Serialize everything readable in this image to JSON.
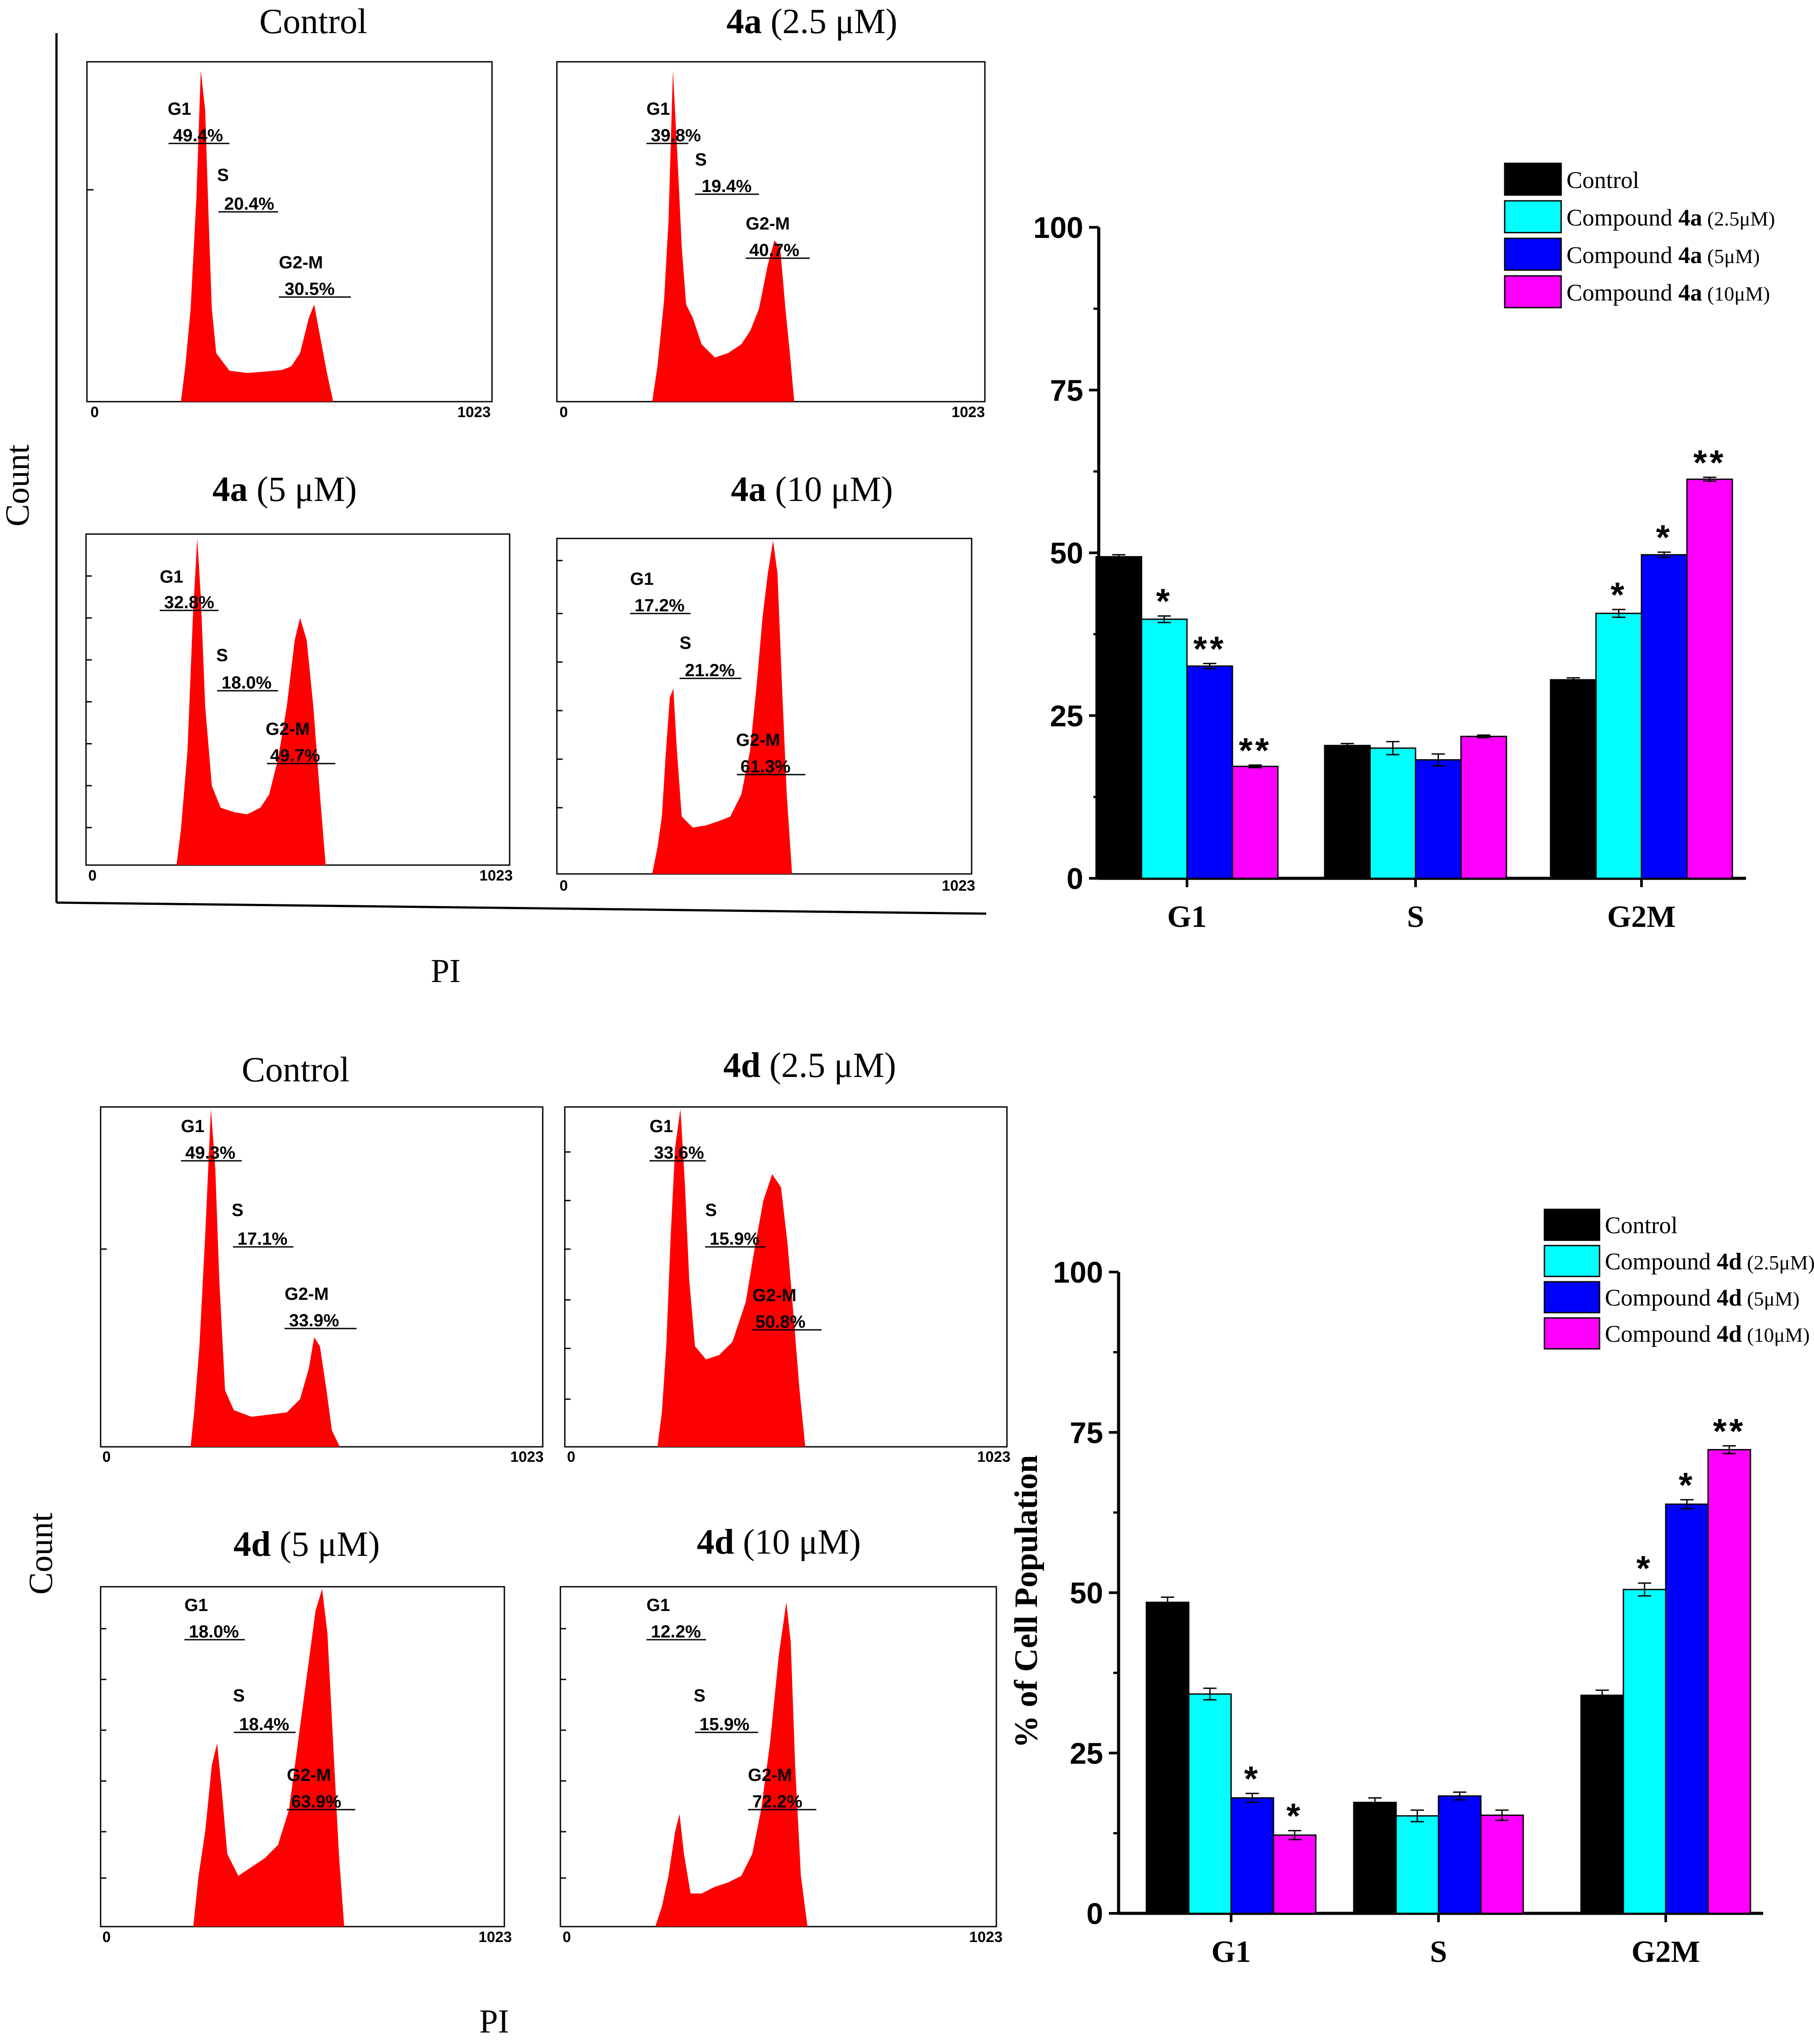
{
  "top_panel": {
    "histograms": [
      {
        "title_bold": "",
        "title_rest": "Control",
        "g1_label": "G1",
        "g1_value": "49.4%",
        "s_label": "S",
        "s_value": "20.4%",
        "g2m_label": "G2-M",
        "g2m_value": "30.5%",
        "axis_start": "0",
        "axis_end": "1023"
      },
      {
        "title_bold": "4a",
        "title_rest": " (2.5 μM)",
        "g1_label": "G1",
        "g1_value": "39.8%",
        "s_label": "S",
        "s_value": "19.4%",
        "g2m_label": "G2-M",
        "g2m_value": "40.7%",
        "axis_start": "0",
        "axis_end": "1023"
      },
      {
        "title_bold": "4a",
        "title_rest": " (5 μM)",
        "g1_label": "G1",
        "g1_value": "32.8%",
        "s_label": "S",
        "s_value": "18.0%",
        "g2m_label": "G2-M",
        "g2m_value": "49.7%",
        "axis_start": "0",
        "axis_end": "1023"
      },
      {
        "title_bold": "4a",
        "title_rest": " (10 μM)",
        "g1_label": "G1",
        "g1_value": "17.2%",
        "s_label": "S",
        "s_value": "21.2%",
        "g2m_label": "G2-M",
        "g2m_value": "61.3%",
        "axis_start": "0",
        "axis_end": "1023"
      }
    ],
    "y_label": "Count",
    "x_label": "PI"
  },
  "bottom_panel": {
    "histograms": [
      {
        "title_bold": "",
        "title_rest": "Control",
        "g1_label": "G1",
        "g1_value": "49.3%",
        "s_label": "S",
        "s_value": "17.1%",
        "g2m_label": "G2-M",
        "g2m_value": "33.9%",
        "axis_start": "0",
        "axis_end": "1023"
      },
      {
        "title_bold": "4d",
        "title_rest": " (2.5 μM)",
        "g1_label": "G1",
        "g1_value": "33.6%",
        "s_label": "S",
        "s_value": "15.9%",
        "g2m_label": "G2-M",
        "g2m_value": "50.8%",
        "axis_start": "0",
        "axis_end": "1023"
      },
      {
        "title_bold": "4d",
        "title_rest": " (5 μM)",
        "g1_label": "G1",
        "g1_value": "18.0%",
        "s_label": "S",
        "s_value": "18.4%",
        "g2m_label": "G2-M",
        "g2m_value": "63.9%",
        "axis_start": "0",
        "axis_end": "1023"
      },
      {
        "title_bold": "4d",
        "title_rest": " (10 μM)",
        "g1_label": "G1",
        "g1_value": "12.2%",
        "s_label": "S",
        "s_value": "15.9%",
        "g2m_label": "G2-M",
        "g2m_value": "72.2%",
        "axis_start": "0",
        "axis_end": "1023"
      }
    ],
    "y_label": "Count",
    "x_label": "PI"
  },
  "chart_data": [
    {
      "type": "bar",
      "title": "",
      "xlabel": "",
      "ylabel": "",
      "ylim": [
        0,
        100
      ],
      "yticks": [
        "0",
        "25",
        "50",
        "75",
        "100"
      ],
      "categories": [
        "G1",
        "S",
        "G2M"
      ],
      "legend_position": "top-right",
      "series": [
        {
          "name": "Control",
          "compound": "",
          "dose": "",
          "color": "#000000",
          "values": [
            49.4,
            20.4,
            30.5
          ],
          "errors": [
            0.3,
            0.3,
            0.3
          ],
          "marks": [
            "",
            "",
            ""
          ]
        },
        {
          "name": "Compound 4a (2.5μM)",
          "compound": "4a",
          "dose": "(2.5μM)",
          "color": "#00ffff",
          "values": [
            39.8,
            20.0,
            40.7
          ],
          "errors": [
            0.5,
            1.0,
            0.6
          ],
          "marks": [
            "*",
            "",
            "*"
          ]
        },
        {
          "name": "Compound 4a (5μM)",
          "compound": "4a",
          "dose": "(5μM)",
          "color": "#0000ff",
          "values": [
            32.6,
            18.2,
            49.7
          ],
          "errors": [
            0.4,
            0.9,
            0.4
          ],
          "marks": [
            "**",
            "",
            "*"
          ]
        },
        {
          "name": "Compound 4a (10μM)",
          "compound": "4a",
          "dose": "(10μM)",
          "color": "#ff00ff",
          "values": [
            17.2,
            21.8,
            61.3
          ],
          "errors": [
            0.2,
            0.2,
            0.3
          ],
          "marks": [
            "**",
            "",
            "**"
          ]
        }
      ]
    },
    {
      "type": "bar",
      "title": "",
      "xlabel": "",
      "ylabel": "% of Cell Population",
      "ylim": [
        0,
        100
      ],
      "yticks": [
        "0",
        "25",
        "50",
        "75",
        "100"
      ],
      "categories": [
        "G1",
        "S",
        "G2M"
      ],
      "legend_position": "top-right",
      "series": [
        {
          "name": "Control",
          "compound": "",
          "dose": "",
          "color": "#000000",
          "values": [
            48.5,
            17.3,
            34.0
          ],
          "errors": [
            0.8,
            0.7,
            0.8
          ],
          "marks": [
            "",
            "",
            ""
          ]
        },
        {
          "name": "Compound 4d (2.5μM)",
          "compound": "4d",
          "dose": "(2.5μM)",
          "color": "#00ffff",
          "values": [
            34.2,
            15.2,
            50.5
          ],
          "errors": [
            0.9,
            0.9,
            1.0
          ],
          "marks": [
            "",
            "",
            "*"
          ]
        },
        {
          "name": "Compound 4d (5μM)",
          "compound": "4d",
          "dose": "(5μM)",
          "color": "#0000ff",
          "values": [
            18.0,
            18.3,
            63.8
          ],
          "errors": [
            0.7,
            0.6,
            0.7
          ],
          "marks": [
            "*",
            "",
            "*"
          ]
        },
        {
          "name": "Compound 4d (10μM)",
          "compound": "4d",
          "dose": "(10μM)",
          "color": "#ff00ff",
          "values": [
            12.2,
            15.3,
            72.3
          ],
          "errors": [
            0.7,
            0.8,
            0.6
          ],
          "marks": [
            "*",
            "",
            "**"
          ]
        }
      ]
    }
  ]
}
